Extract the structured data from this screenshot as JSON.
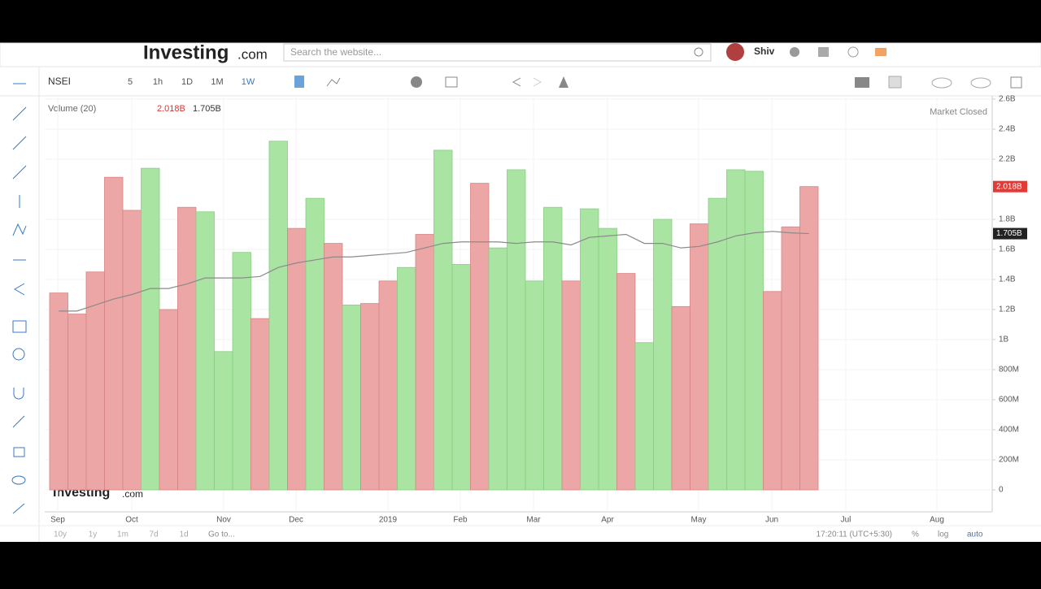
{
  "header": {
    "logo": "Investing",
    "logo_suffix": ".com",
    "search_placeholder": "Search the website...",
    "user": "Shiv"
  },
  "toolbar": {
    "symbol": "NSEI",
    "intervals": [
      "5",
      "1h",
      "1D",
      "1M",
      "1W"
    ]
  },
  "chart_data": {
    "type": "bar",
    "legend_label": "Volume (20)",
    "status": "Market Closed",
    "watermark": "Investing",
    "watermark_suffix": ".com",
    "x_labels": [
      "Sep",
      "Oct",
      "Nov",
      "Dec",
      "2019",
      "Feb",
      "Mar",
      "Apr",
      "May",
      "Jun",
      "Jul",
      "Aug"
    ],
    "ylim": [
      0,
      2600000000
    ],
    "yticks": [
      0,
      {
        "value": 200000000,
        "label": "200M"
      },
      {
        "value": 400000000,
        "label": "400M"
      },
      {
        "value": 600000000,
        "label": "600M"
      },
      {
        "value": 800000000,
        "label": "800M"
      },
      {
        "value": 1000000000,
        "label": "1B"
      },
      {
        "value": 1200000000,
        "label": "1.2B"
      },
      {
        "value": 1400000000,
        "label": "1.4B"
      },
      {
        "value": 1600000000,
        "label": "1.6B"
      },
      {
        "value": 1800000000,
        "label": "1.8B"
      },
      {
        "value": 2200000000,
        "label": "2.2B"
      },
      {
        "value": 2400000000,
        "label": "2.4B"
      },
      {
        "value": 2600000000,
        "label": "2.6B"
      }
    ],
    "grid": true,
    "series": [
      {
        "name": "Volume",
        "type": "bar",
        "color_up": "#a9e4a3",
        "color_down": "#eca6a6",
        "directions": [
          "down",
          "down",
          "down",
          "down",
          "down",
          "up",
          "down",
          "down",
          "up",
          "up",
          "up",
          "down",
          "up",
          "down",
          "up",
          "down",
          "up",
          "down",
          "down",
          "up",
          "down",
          "up",
          "up",
          "down",
          "up",
          "up",
          "up",
          "up",
          "down",
          "up",
          "up",
          "down",
          "up",
          "up",
          "down",
          "down",
          "up",
          "up",
          "up",
          "down",
          "down",
          "down"
        ],
        "values": [
          1310000000,
          1170000000,
          1450000000,
          2080000000,
          1860000000,
          2140000000,
          1200000000,
          1880000000,
          1850000000,
          920000000,
          1580000000,
          1140000000,
          2320000000,
          1740000000,
          1940000000,
          1640000000,
          1230000000,
          1240000000,
          1390000000,
          1480000000,
          1700000000,
          2260000000,
          1500000000,
          2040000000,
          1610000000,
          2130000000,
          1390000000,
          1880000000,
          1390000000,
          1870000000,
          1740000000,
          1440000000,
          980000000,
          1800000000,
          1220000000,
          1770000000,
          1940000000,
          2130000000,
          2120000000,
          1320000000,
          1750000000,
          2018000000
        ],
        "value_labels": [
          null,
          null,
          null,
          null,
          null,
          null,
          null,
          null,
          null,
          null,
          null,
          null,
          null,
          null,
          null,
          null,
          null,
          null,
          null,
          null,
          null,
          null,
          null,
          null,
          null,
          null,
          null,
          null,
          null,
          null,
          null,
          null,
          null,
          null,
          null,
          null,
          null,
          null,
          null,
          null,
          null,
          "2.018B"
        ],
        "badge_color": "#e53935"
      },
      {
        "name": "MA",
        "type": "line",
        "color": "#8a8a8a",
        "values": [
          1190000000,
          1190000000,
          1230000000,
          1270000000,
          1300000000,
          1340000000,
          1340000000,
          1370000000,
          1410000000,
          1410000000,
          1410000000,
          1420000000,
          1480000000,
          1510000000,
          1530000000,
          1550000000,
          1550000000,
          1560000000,
          1570000000,
          1580000000,
          1610000000,
          1640000000,
          1650000000,
          1650000000,
          1650000000,
          1640000000,
          1650000000,
          1650000000,
          1630000000,
          1680000000,
          1690000000,
          1700000000,
          1640000000,
          1640000000,
          1610000000,
          1620000000,
          1650000000,
          1690000000,
          1710000000,
          1720000000,
          1710000000,
          1705000000
        ],
        "value_labels": [
          null,
          null,
          null,
          null,
          null,
          null,
          null,
          null,
          null,
          null,
          null,
          null,
          null,
          null,
          null,
          null,
          null,
          null,
          null,
          null,
          null,
          null,
          null,
          null,
          null,
          null,
          null,
          null,
          null,
          null,
          null,
          null,
          null,
          null,
          null,
          null,
          null,
          null,
          null,
          null,
          null,
          "1.705B"
        ],
        "badge_color": "#222222"
      }
    ]
  },
  "footer": {
    "ranges": [
      "10y",
      "1y",
      "1m",
      "7d",
      "1d"
    ],
    "goto": "Go to...",
    "time": "17:20:11 (UTC+5:30)",
    "percent": "%",
    "log": "log",
    "auto": "auto"
  }
}
